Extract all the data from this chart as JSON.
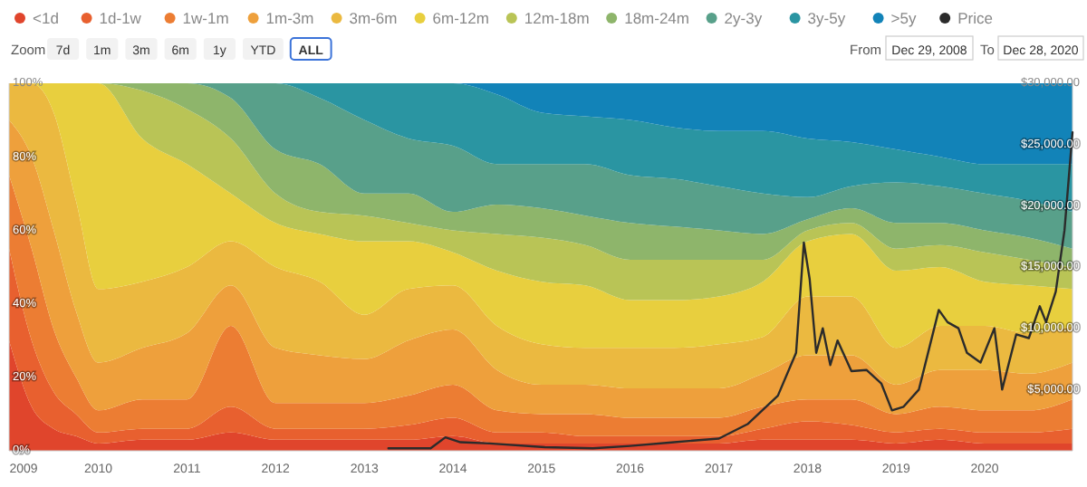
{
  "chart_data": {
    "type": "area",
    "stacked": true,
    "legend": "top",
    "x": [
      "2008-12-29",
      "2009-04-01",
      "2009-07-01",
      "2009-10-01",
      "2010-01-01",
      "2010-07-01",
      "2011-01-01",
      "2011-07-01",
      "2012-01-01",
      "2012-07-01",
      "2013-01-01",
      "2013-07-01",
      "2014-01-01",
      "2014-07-01",
      "2015-01-01",
      "2015-07-01",
      "2016-01-01",
      "2016-07-01",
      "2017-01-01",
      "2017-07-01",
      "2018-01-01",
      "2018-07-01",
      "2019-01-01",
      "2019-07-01",
      "2020-01-01",
      "2020-07-01",
      "2020-12-28"
    ],
    "xlim": [
      "2008-12-29",
      "2020-12-28"
    ],
    "xticks": [
      {
        "value": "2009-01-01",
        "label": "2009"
      },
      {
        "value": "2010-01-01",
        "label": "2010"
      },
      {
        "value": "2011-01-01",
        "label": "2011"
      },
      {
        "value": "2012-01-01",
        "label": "2012"
      },
      {
        "value": "2013-01-01",
        "label": "2013"
      },
      {
        "value": "2014-01-01",
        "label": "2014"
      },
      {
        "value": "2015-01-01",
        "label": "2015"
      },
      {
        "value": "2016-01-01",
        "label": "2016"
      },
      {
        "value": "2017-01-01",
        "label": "2017"
      },
      {
        "value": "2018-01-01",
        "label": "2018"
      },
      {
        "value": "2019-01-01",
        "label": "2019"
      },
      {
        "value": "2020-01-01",
        "label": "2020"
      }
    ],
    "ylim": [
      0,
      100
    ],
    "yticks": [
      {
        "value": 0,
        "label": "0%"
      },
      {
        "value": 20,
        "label": "20%"
      },
      {
        "value": 40,
        "label": "40%"
      },
      {
        "value": 60,
        "label": "60%"
      },
      {
        "value": 80,
        "label": "80%"
      },
      {
        "value": 100,
        "label": "100%"
      }
    ],
    "y2lim": [
      0,
      30000
    ],
    "y2ticks": [
      {
        "value": 5000,
        "label": "$5,000.00"
      },
      {
        "value": 10000,
        "label": "$10,000.00"
      },
      {
        "value": 15000,
        "label": "$15,000.00"
      },
      {
        "value": 20000,
        "label": "$20,000.00"
      },
      {
        "value": 25000,
        "label": "$25,000.00"
      },
      {
        "value": 30000,
        "label": "$30,000.00"
      }
    ],
    "annotations": [
      "Zoom",
      "7d",
      "1m",
      "3m",
      "6m",
      "1y",
      "YTD",
      "ALL",
      "From",
      "Dec 29, 2008",
      "To",
      "Dec 28, 2020"
    ],
    "series": [
      {
        "name": "<1d",
        "color": "#e0452c",
        "values": [
          30,
          12,
          6,
          4,
          2,
          3,
          3,
          5,
          3,
          3,
          3,
          3,
          4,
          2,
          2,
          2,
          2,
          2,
          2,
          3,
          3,
          3,
          2,
          3,
          2,
          2,
          2
        ]
      },
      {
        "name": "1d-1w",
        "color": "#e8602f",
        "values": [
          25,
          18,
          10,
          6,
          3,
          3,
          3,
          7,
          3,
          3,
          3,
          4,
          5,
          3,
          3,
          2,
          2,
          2,
          2,
          3,
          5,
          4,
          3,
          3,
          3,
          3,
          4
        ]
      },
      {
        "name": "1w-1m",
        "color": "#ec7d33",
        "values": [
          20,
          25,
          17,
          10,
          6,
          8,
          8,
          22,
          7,
          7,
          7,
          8,
          9,
          6,
          5,
          6,
          5,
          5,
          5,
          6,
          6,
          7,
          5,
          6,
          6,
          6,
          8
        ]
      },
      {
        "name": "1m-3m",
        "color": "#eea03c",
        "values": [
          15,
          25,
          27,
          18,
          13,
          14,
          18,
          11,
          15,
          13,
          12,
          15,
          15,
          11,
          8,
          8,
          8,
          8,
          8,
          9,
          12,
          12,
          8,
          10,
          11,
          10,
          10
        ]
      },
      {
        "name": "3m-6m",
        "color": "#ebb940",
        "values": [
          10,
          20,
          32,
          30,
          20,
          18,
          18,
          12,
          22,
          20,
          12,
          14,
          12,
          12,
          11,
          10,
          11,
          11,
          12,
          10,
          16,
          16,
          10,
          12,
          12,
          11,
          10
        ]
      },
      {
        "name": "6m-12m",
        "color": "#e8cf3e",
        "values": [
          0,
          0,
          8,
          32,
          56,
          39,
          28,
          13,
          12,
          13,
          20,
          13,
          9,
          15,
          17,
          17,
          13,
          13,
          13,
          15,
          15,
          17,
          21,
          16,
          12,
          13,
          10
        ]
      },
      {
        "name": "12m-18m",
        "color": "#b9c456",
        "values": [
          0,
          0,
          0,
          0,
          0,
          13,
          15,
          15,
          8,
          6,
          7,
          5,
          6,
          10,
          12,
          11,
          11,
          11,
          10,
          6,
          3,
          3,
          6,
          6,
          8,
          7,
          6
        ]
      },
      {
        "name": "18m-24m",
        "color": "#8eb56b",
        "values": [
          0,
          0,
          0,
          0,
          0,
          2,
          7,
          11,
          12,
          13,
          6,
          8,
          5,
          8,
          8,
          8,
          10,
          9,
          8,
          7,
          3,
          4,
          7,
          6,
          6,
          6,
          5
        ]
      },
      {
        "name": "2y-3y",
        "color": "#58a08a",
        "values": [
          0,
          0,
          0,
          0,
          0,
          0,
          0,
          4,
          18,
          18,
          20,
          15,
          18,
          11,
          12,
          14,
          13,
          13,
          12,
          11,
          6,
          6,
          11,
          10,
          10,
          10,
          10
        ]
      },
      {
        "name": "3y-5y",
        "color": "#2a95a2",
        "values": [
          0,
          0,
          0,
          0,
          0,
          0,
          0,
          0,
          0,
          4,
          10,
          15,
          17,
          19,
          14,
          13,
          15,
          14,
          15,
          17,
          16,
          12,
          9,
          8,
          8,
          10,
          13
        ]
      },
      {
        "name": ">5y",
        "color": "#1283b8",
        "values": [
          0,
          0,
          0,
          0,
          0,
          0,
          0,
          0,
          0,
          0,
          0,
          0,
          0,
          3,
          8,
          9,
          10,
          12,
          13,
          13,
          15,
          16,
          18,
          20,
          22,
          22,
          22
        ]
      },
      {
        "name": "Price",
        "type": "line",
        "axis": "y2",
        "color": "#2b2b2b",
        "x": [
          "2013-04-10",
          "2013-10-01",
          "2013-12-01",
          "2014-02-01",
          "2014-06-01",
          "2015-01-15",
          "2015-08-01",
          "2016-01-01",
          "2016-07-01",
          "2017-01-01",
          "2017-05-01",
          "2017-09-01",
          "2017-11-15",
          "2017-12-17",
          "2018-01-10",
          "2018-02-06",
          "2018-03-05",
          "2018-04-05",
          "2018-05-05",
          "2018-07-01",
          "2018-09-01",
          "2018-11-01",
          "2018-12-15",
          "2019-02-01",
          "2019-04-05",
          "2019-06-26",
          "2019-08-01",
          "2019-09-15",
          "2019-10-20",
          "2019-12-15",
          "2020-02-10",
          "2020-03-13",
          "2020-05-10",
          "2020-07-01",
          "2020-08-15",
          "2020-09-10",
          "2020-10-20",
          "2020-11-25",
          "2020-12-28"
        ],
        "values": [
          200,
          200,
          1100,
          700,
          600,
          300,
          200,
          400,
          700,
          1000,
          2200,
          4500,
          8000,
          17000,
          14000,
          8000,
          10000,
          7000,
          9000,
          6500,
          6600,
          5500,
          3300,
          3600,
          5000,
          11500,
          10500,
          10000,
          8000,
          7200,
          10000,
          5000,
          9500,
          9200,
          11800,
          10500,
          13000,
          18000,
          26000
        ]
      }
    ]
  }
}
